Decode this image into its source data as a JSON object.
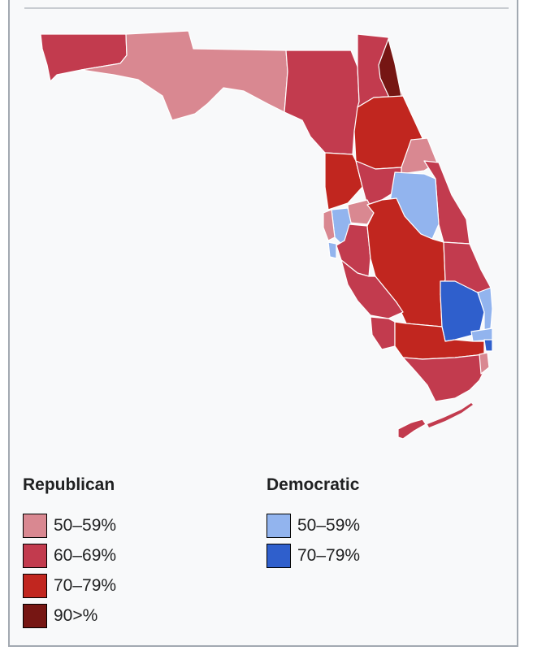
{
  "colors": {
    "rep_50_59": "#d98891",
    "rep_60_69": "#c23b4e",
    "rep_70_79": "#c1261f",
    "rep_90": "#761613",
    "dem_50_59": "#92b4ee",
    "dem_70_79": "#2f5fcc"
  },
  "map": {
    "icon": "florida-county-map"
  },
  "legend": {
    "republican": {
      "title": "Republican",
      "items": [
        {
          "label": "50–59%",
          "color": "#d98891"
        },
        {
          "label": "60–69%",
          "color": "#c23b4e"
        },
        {
          "label": "70–79%",
          "color": "#c1261f"
        },
        {
          "label": "90>%",
          "color": "#761613"
        }
      ]
    },
    "democratic": {
      "title": "Democratic",
      "items": [
        {
          "label": "50–59%",
          "color": "#92b4ee"
        },
        {
          "label": "70–79%",
          "color": "#2f5fcc"
        }
      ]
    }
  }
}
